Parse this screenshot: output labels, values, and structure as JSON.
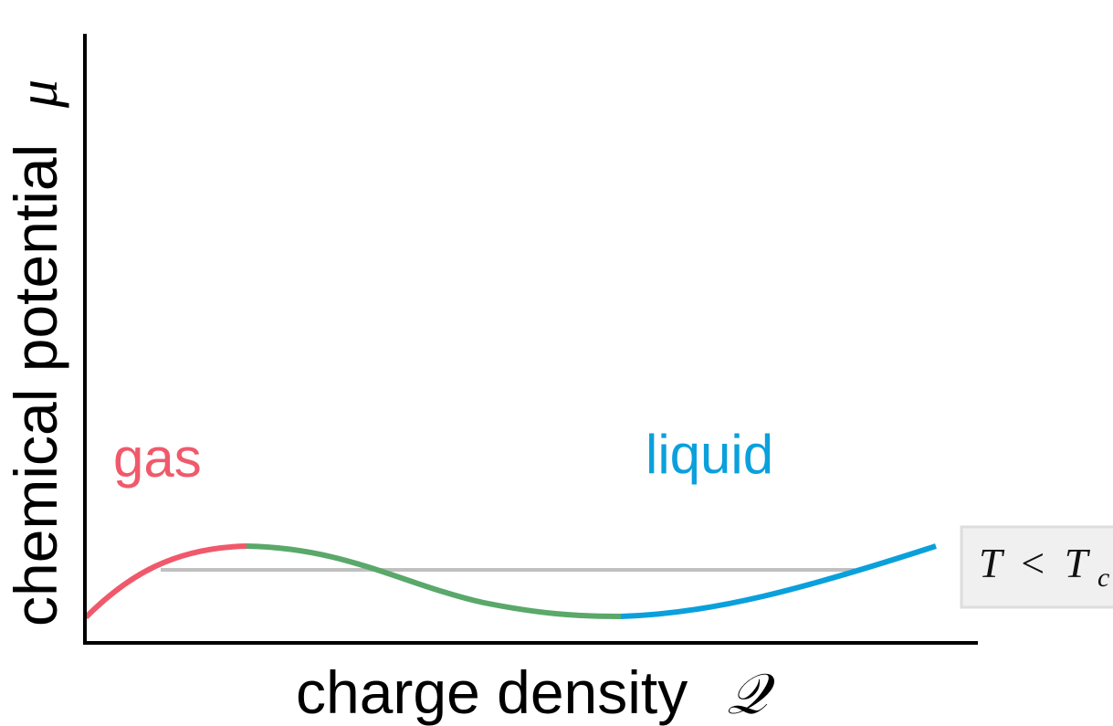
{
  "axes": {
    "x_label": "charge density",
    "x_symbol": "𝒬",
    "y_label": "chemical potential",
    "y_symbol": "μ"
  },
  "labels": {
    "gas": "gas",
    "liquid": "liquid"
  },
  "condition_box": {
    "text": "T < Tc",
    "T": "T",
    "lt": "<",
    "Tc_base": "T",
    "Tc_sub": "c"
  },
  "colors": {
    "gas": "#f0596b",
    "unstable": "#5aa86a",
    "liquid": "#0aa0dc",
    "coexistence_line": "#c0c0c0",
    "axis": "#000000",
    "box_fill": "#f0f0f0",
    "box_border": "#dddddd"
  }
}
